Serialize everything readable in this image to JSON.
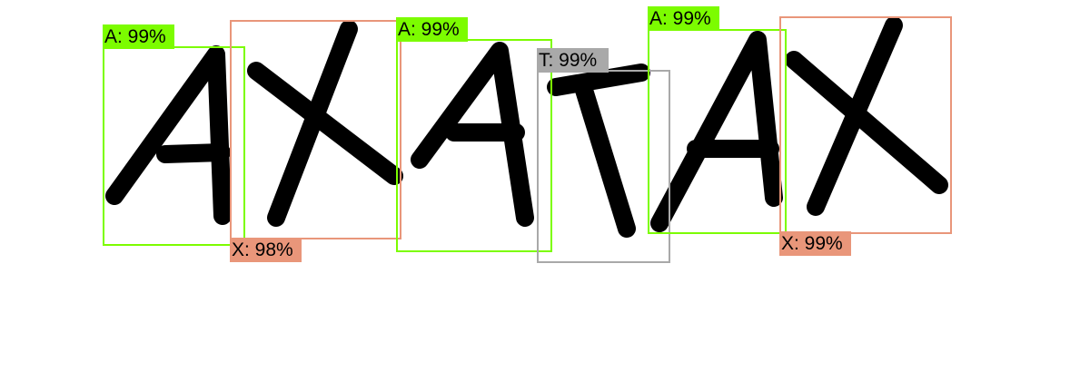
{
  "detections": [
    {
      "label": "A: 99%",
      "class": "A",
      "color": "#7cfc00"
    },
    {
      "label": "X: 98%",
      "class": "X",
      "color": "#e9967a"
    },
    {
      "label": "A: 99%",
      "class": "A",
      "color": "#7cfc00"
    },
    {
      "label": "T: 99%",
      "class": "T",
      "color": "#a9a9a9"
    },
    {
      "label": "A: 99%",
      "class": "A",
      "color": "#7cfc00"
    },
    {
      "label": "X: 99%",
      "class": "X",
      "color": "#e9967a"
    }
  ]
}
